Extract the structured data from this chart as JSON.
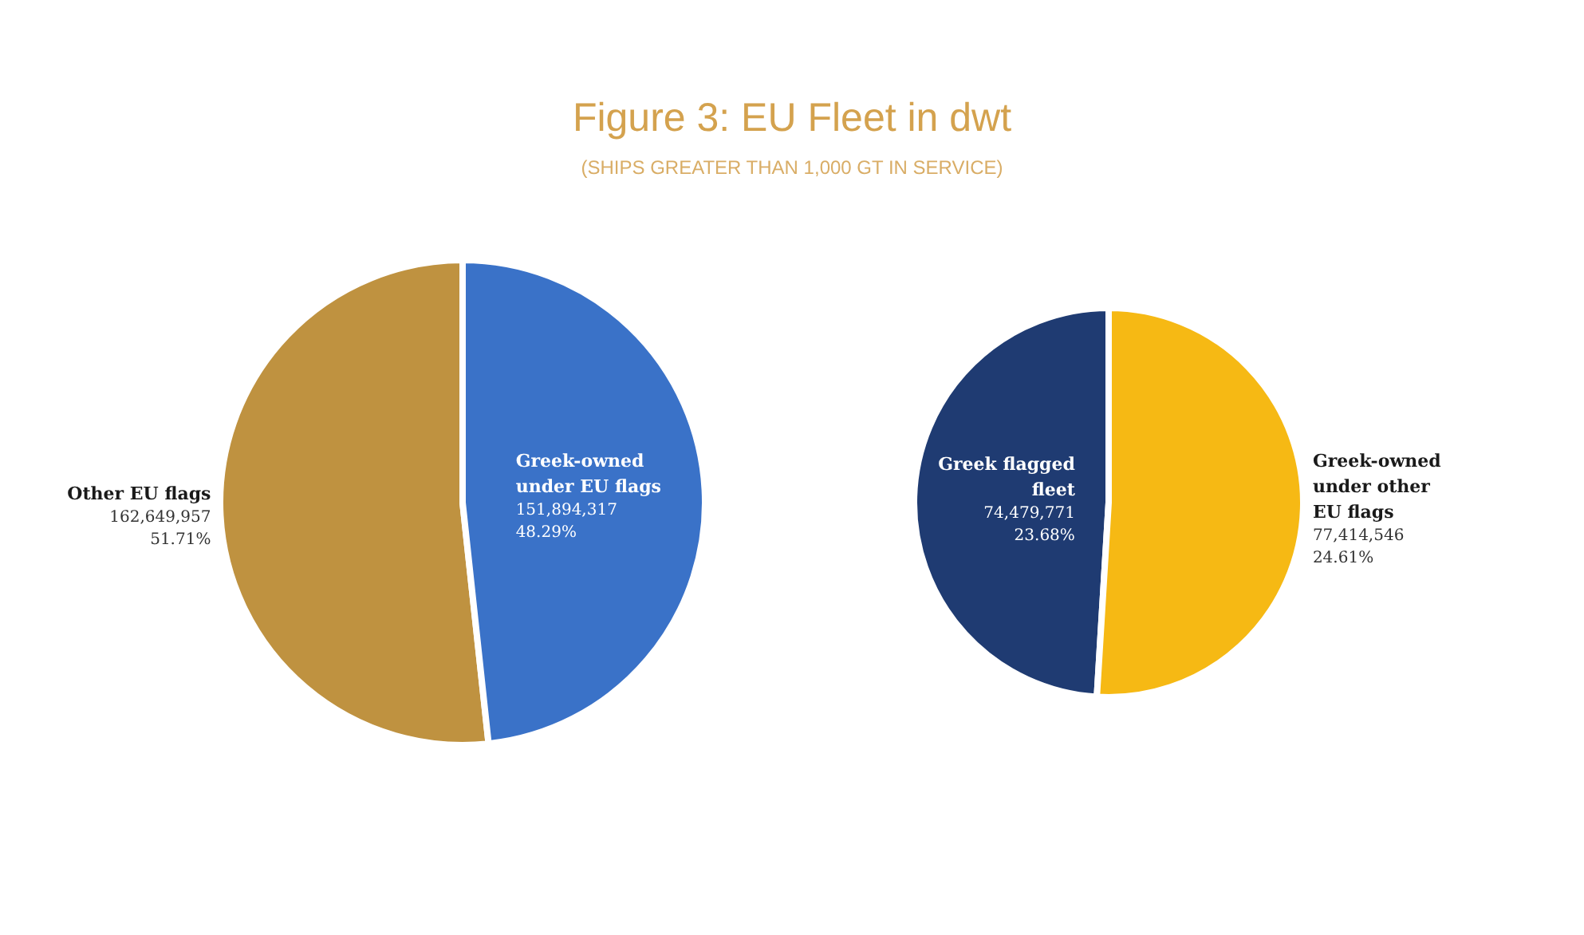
{
  "chart_data": [
    {
      "type": "pie",
      "title": "Figure 3: EU Fleet in dwt",
      "subtitle": "(SHIPS GREATER THAN 1,000 GT IN SERVICE)",
      "categories": [
        "Other EU flags",
        "Greek-owned\nunder EU flags"
      ],
      "values": [
        162649957,
        151894317
      ],
      "colors": [
        "#bf9240",
        "#3a72c8"
      ],
      "value_labels": [
        "162,649,957\n51.71%",
        "151,894,317\n48.29%"
      ]
    },
    {
      "type": "pie",
      "categories": [
        "Greek flagged\nfleet",
        "Greek-owned\nunder other\nEU flags"
      ],
      "values": [
        74479771,
        77414546
      ],
      "colors": [
        "#1f3b72",
        "#f6b914"
      ],
      "value_labels": [
        "74,479,771\n23.68%",
        "77,414,546\n24.61%"
      ]
    }
  ]
}
